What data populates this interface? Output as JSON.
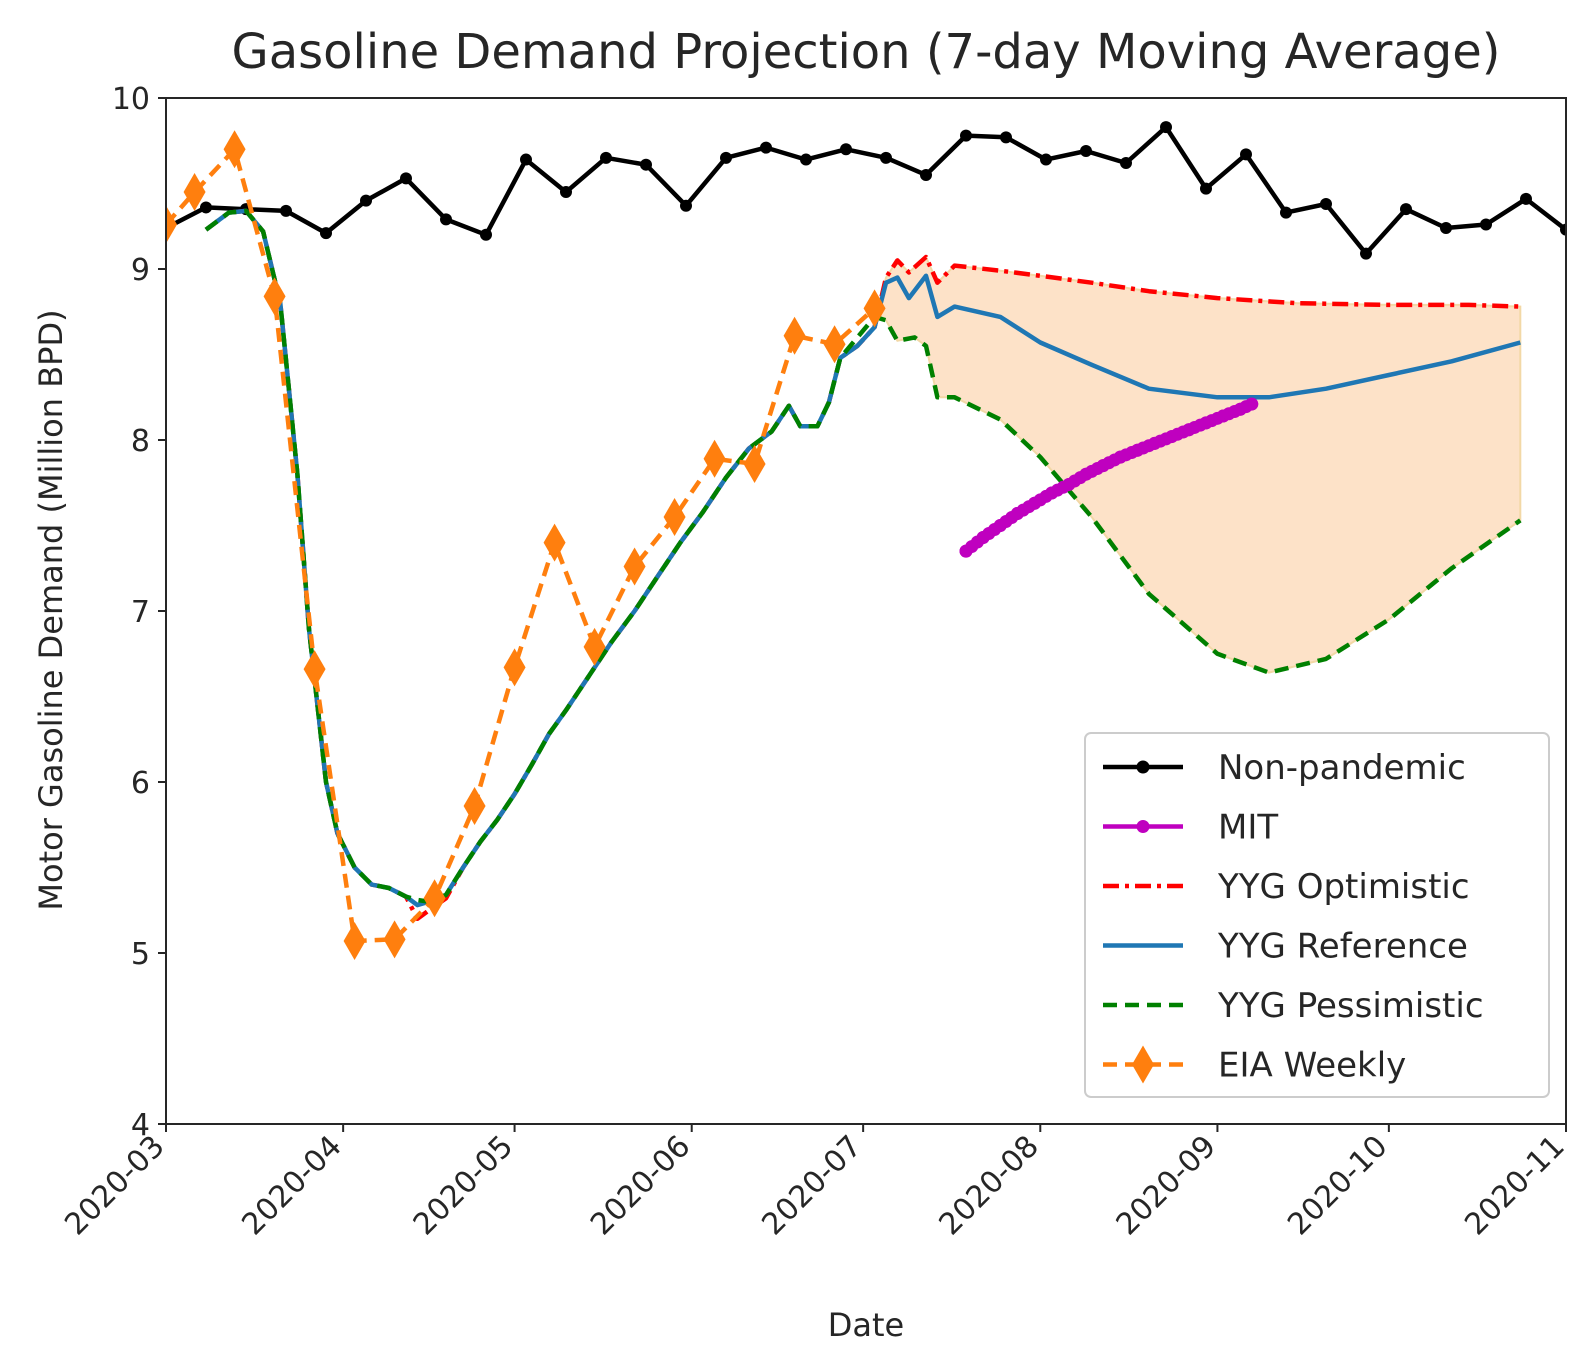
{
  "chart_data": {
    "type": "line",
    "title": "Gasoline Demand Projection (7-day Moving Average)",
    "xlabel": "Date",
    "ylabel": "Motor Gasoline Demand (Million BPD)",
    "xlim": [
      "2020-03-01",
      "2020-11-01"
    ],
    "ylim": [
      4,
      10
    ],
    "x_ticks": [
      "2020-03",
      "2020-04",
      "2020-05",
      "2020-06",
      "2020-07",
      "2020-08",
      "2020-09",
      "2020-10",
      "2020-11"
    ],
    "y_ticks": [
      "4",
      "5",
      "6",
      "7",
      "8",
      "9",
      "10"
    ],
    "grid": false,
    "legend_position": "lower-right",
    "series": [
      {
        "name": "Non-pandemic",
        "color": "#000000",
        "style": "solid-dot",
        "points": [
          [
            "2020-03-01",
            9.24
          ],
          [
            "2020-03-08",
            9.36
          ],
          [
            "2020-03-15",
            9.35
          ],
          [
            "2020-03-22",
            9.34
          ],
          [
            "2020-03-29",
            9.21
          ],
          [
            "2020-04-05",
            9.4
          ],
          [
            "2020-04-12",
            9.53
          ],
          [
            "2020-04-19",
            9.29
          ],
          [
            "2020-04-26",
            9.2
          ],
          [
            "2020-05-03",
            9.64
          ],
          [
            "2020-05-10",
            9.45
          ],
          [
            "2020-05-17",
            9.65
          ],
          [
            "2020-05-24",
            9.61
          ],
          [
            "2020-05-31",
            9.37
          ],
          [
            "2020-06-07",
            9.65
          ],
          [
            "2020-06-14",
            9.71
          ],
          [
            "2020-06-21",
            9.64
          ],
          [
            "2020-06-28",
            9.7
          ],
          [
            "2020-07-05",
            9.65
          ],
          [
            "2020-07-12",
            9.55
          ],
          [
            "2020-07-19",
            9.78
          ],
          [
            "2020-07-26",
            9.77
          ],
          [
            "2020-08-02",
            9.64
          ],
          [
            "2020-08-09",
            9.69
          ],
          [
            "2020-08-16",
            9.62
          ],
          [
            "2020-08-23",
            9.83
          ],
          [
            "2020-08-30",
            9.47
          ],
          [
            "2020-09-06",
            9.67
          ],
          [
            "2020-09-13",
            9.33
          ],
          [
            "2020-09-20",
            9.38
          ],
          [
            "2020-09-27",
            9.09
          ],
          [
            "2020-10-04",
            9.35
          ],
          [
            "2020-10-11",
            9.24
          ],
          [
            "2020-10-18",
            9.26
          ],
          [
            "2020-10-25",
            9.41
          ],
          [
            "2020-11-01",
            9.23
          ]
        ]
      },
      {
        "name": "MIT",
        "color": "#bf00bf",
        "style": "solid-dot",
        "points": [
          [
            "2020-07-19",
            7.35
          ],
          [
            "2020-07-22",
            7.43
          ],
          [
            "2020-07-25",
            7.5
          ],
          [
            "2020-07-28",
            7.57
          ],
          [
            "2020-07-31",
            7.63
          ],
          [
            "2020-08-03",
            7.69
          ],
          [
            "2020-08-06",
            7.74
          ],
          [
            "2020-08-09",
            7.8
          ],
          [
            "2020-08-12",
            7.85
          ],
          [
            "2020-08-15",
            7.9
          ],
          [
            "2020-08-18",
            7.94
          ],
          [
            "2020-08-21",
            7.98
          ],
          [
            "2020-08-24",
            8.02
          ],
          [
            "2020-08-27",
            8.06
          ],
          [
            "2020-08-30",
            8.1
          ],
          [
            "2020-09-02",
            8.14
          ],
          [
            "2020-09-05",
            8.18
          ],
          [
            "2020-09-07",
            8.21
          ]
        ]
      },
      {
        "name": "YYG Optimistic",
        "color": "#ff0000",
        "style": "dashdot",
        "points": [
          [
            "2020-03-08",
            9.23
          ],
          [
            "2020-03-12",
            9.33
          ],
          [
            "2020-03-15",
            9.34
          ],
          [
            "2020-03-18",
            9.22
          ],
          [
            "2020-03-21",
            8.8
          ],
          [
            "2020-03-24",
            7.8
          ],
          [
            "2020-03-26",
            6.9
          ],
          [
            "2020-03-29",
            6.0
          ],
          [
            "2020-03-31",
            5.7
          ],
          [
            "2020-04-03",
            5.5
          ],
          [
            "2020-04-06",
            5.4
          ],
          [
            "2020-04-09",
            5.38
          ],
          [
            "2020-04-12",
            5.33
          ],
          [
            "2020-04-14",
            5.2
          ],
          [
            "2020-04-16",
            5.25
          ],
          [
            "2020-04-19",
            5.32
          ],
          [
            "2020-04-22",
            5.5
          ],
          [
            "2020-04-25",
            5.65
          ],
          [
            "2020-04-28",
            5.78
          ],
          [
            "2020-05-01",
            5.93
          ],
          [
            "2020-05-04",
            6.1
          ],
          [
            "2020-05-07",
            6.28
          ],
          [
            "2020-05-10",
            6.42
          ],
          [
            "2020-05-14",
            6.62
          ],
          [
            "2020-05-18",
            6.82
          ],
          [
            "2020-05-22",
            7.0
          ],
          [
            "2020-05-26",
            7.2
          ],
          [
            "2020-05-30",
            7.4
          ],
          [
            "2020-06-03",
            7.58
          ],
          [
            "2020-06-07",
            7.78
          ],
          [
            "2020-06-11",
            7.95
          ],
          [
            "2020-06-15",
            8.05
          ],
          [
            "2020-06-18",
            8.2
          ],
          [
            "2020-06-20",
            8.08
          ],
          [
            "2020-06-23",
            8.08
          ],
          [
            "2020-06-25",
            8.22
          ],
          [
            "2020-06-27",
            8.48
          ],
          [
            "2020-06-30",
            8.55
          ],
          [
            "2020-07-03",
            8.66
          ],
          [
            "2020-07-05",
            8.95
          ],
          [
            "2020-07-07",
            9.05
          ],
          [
            "2020-07-09",
            8.98
          ],
          [
            "2020-07-12",
            9.07
          ],
          [
            "2020-07-14",
            8.92
          ],
          [
            "2020-07-17",
            9.02
          ],
          [
            "2020-07-25",
            8.99
          ],
          [
            "2020-08-01",
            8.96
          ],
          [
            "2020-08-10",
            8.92
          ],
          [
            "2020-08-20",
            8.87
          ],
          [
            "2020-09-01",
            8.83
          ],
          [
            "2020-09-15",
            8.8
          ],
          [
            "2020-10-01",
            8.79
          ],
          [
            "2020-10-15",
            8.79
          ],
          [
            "2020-10-24",
            8.78
          ]
        ]
      },
      {
        "name": "YYG Reference",
        "color": "#1f77b4",
        "style": "solid",
        "points": [
          [
            "2020-03-08",
            9.23
          ],
          [
            "2020-03-12",
            9.33
          ],
          [
            "2020-03-15",
            9.34
          ],
          [
            "2020-03-18",
            9.22
          ],
          [
            "2020-03-21",
            8.8
          ],
          [
            "2020-03-24",
            7.8
          ],
          [
            "2020-03-26",
            6.9
          ],
          [
            "2020-03-29",
            6.0
          ],
          [
            "2020-03-31",
            5.7
          ],
          [
            "2020-04-03",
            5.5
          ],
          [
            "2020-04-06",
            5.4
          ],
          [
            "2020-04-09",
            5.38
          ],
          [
            "2020-04-12",
            5.33
          ],
          [
            "2020-04-14",
            5.28
          ],
          [
            "2020-04-16",
            5.3
          ],
          [
            "2020-04-19",
            5.34
          ],
          [
            "2020-04-22",
            5.5
          ],
          [
            "2020-04-25",
            5.65
          ],
          [
            "2020-04-28",
            5.78
          ],
          [
            "2020-05-01",
            5.93
          ],
          [
            "2020-05-04",
            6.1
          ],
          [
            "2020-05-07",
            6.28
          ],
          [
            "2020-05-10",
            6.42
          ],
          [
            "2020-05-14",
            6.62
          ],
          [
            "2020-05-18",
            6.82
          ],
          [
            "2020-05-22",
            7.0
          ],
          [
            "2020-05-26",
            7.2
          ],
          [
            "2020-05-30",
            7.4
          ],
          [
            "2020-06-03",
            7.58
          ],
          [
            "2020-06-07",
            7.78
          ],
          [
            "2020-06-11",
            7.95
          ],
          [
            "2020-06-15",
            8.05
          ],
          [
            "2020-06-18",
            8.2
          ],
          [
            "2020-06-20",
            8.08
          ],
          [
            "2020-06-23",
            8.08
          ],
          [
            "2020-06-25",
            8.22
          ],
          [
            "2020-06-27",
            8.48
          ],
          [
            "2020-06-30",
            8.55
          ],
          [
            "2020-07-03",
            8.66
          ],
          [
            "2020-07-05",
            8.92
          ],
          [
            "2020-07-07",
            8.95
          ],
          [
            "2020-07-09",
            8.83
          ],
          [
            "2020-07-12",
            8.96
          ],
          [
            "2020-07-14",
            8.72
          ],
          [
            "2020-07-17",
            8.78
          ],
          [
            "2020-07-25",
            8.72
          ],
          [
            "2020-08-01",
            8.57
          ],
          [
            "2020-08-10",
            8.44
          ],
          [
            "2020-08-20",
            8.3
          ],
          [
            "2020-09-01",
            8.25
          ],
          [
            "2020-09-10",
            8.25
          ],
          [
            "2020-09-20",
            8.3
          ],
          [
            "2020-10-01",
            8.38
          ],
          [
            "2020-10-12",
            8.46
          ],
          [
            "2020-10-24",
            8.57
          ]
        ]
      },
      {
        "name": "YYG Pessimistic",
        "color": "#008000",
        "style": "dashed",
        "points": [
          [
            "2020-03-08",
            9.23
          ],
          [
            "2020-03-12",
            9.33
          ],
          [
            "2020-03-15",
            9.34
          ],
          [
            "2020-03-18",
            9.22
          ],
          [
            "2020-03-21",
            8.8
          ],
          [
            "2020-03-24",
            7.8
          ],
          [
            "2020-03-26",
            6.9
          ],
          [
            "2020-03-29",
            6.0
          ],
          [
            "2020-03-31",
            5.7
          ],
          [
            "2020-04-03",
            5.5
          ],
          [
            "2020-04-06",
            5.4
          ],
          [
            "2020-04-09",
            5.38
          ],
          [
            "2020-04-12",
            5.33
          ],
          [
            "2020-04-14",
            5.31
          ],
          [
            "2020-04-16",
            5.3
          ],
          [
            "2020-04-19",
            5.34
          ],
          [
            "2020-04-22",
            5.5
          ],
          [
            "2020-04-25",
            5.65
          ],
          [
            "2020-04-28",
            5.78
          ],
          [
            "2020-05-01",
            5.93
          ],
          [
            "2020-05-04",
            6.1
          ],
          [
            "2020-05-07",
            6.28
          ],
          [
            "2020-05-10",
            6.42
          ],
          [
            "2020-05-14",
            6.62
          ],
          [
            "2020-05-18",
            6.82
          ],
          [
            "2020-05-22",
            7.0
          ],
          [
            "2020-05-26",
            7.2
          ],
          [
            "2020-05-30",
            7.4
          ],
          [
            "2020-06-03",
            7.58
          ],
          [
            "2020-06-07",
            7.78
          ],
          [
            "2020-06-11",
            7.95
          ],
          [
            "2020-06-15",
            8.05
          ],
          [
            "2020-06-18",
            8.2
          ],
          [
            "2020-06-20",
            8.08
          ],
          [
            "2020-06-23",
            8.08
          ],
          [
            "2020-06-25",
            8.22
          ],
          [
            "2020-06-27",
            8.48
          ],
          [
            "2020-06-30",
            8.6
          ],
          [
            "2020-07-03",
            8.72
          ],
          [
            "2020-07-05",
            8.7
          ],
          [
            "2020-07-07",
            8.58
          ],
          [
            "2020-07-10",
            8.6
          ],
          [
            "2020-07-12",
            8.55
          ],
          [
            "2020-07-14",
            8.25
          ],
          [
            "2020-07-17",
            8.25
          ],
          [
            "2020-07-25",
            8.12
          ],
          [
            "2020-08-01",
            7.9
          ],
          [
            "2020-08-10",
            7.55
          ],
          [
            "2020-08-20",
            7.1
          ],
          [
            "2020-09-01",
            6.75
          ],
          [
            "2020-09-10",
            6.64
          ],
          [
            "2020-09-20",
            6.72
          ],
          [
            "2020-10-01",
            6.95
          ],
          [
            "2020-10-12",
            7.25
          ],
          [
            "2020-10-24",
            7.53
          ]
        ]
      },
      {
        "name": "EIA Weekly",
        "color": "#ff7f0e",
        "style": "dashed-diamond",
        "points": [
          [
            "2020-03-01",
            9.26
          ],
          [
            "2020-03-06",
            9.45
          ],
          [
            "2020-03-13",
            9.7
          ],
          [
            "2020-03-20",
            8.84
          ],
          [
            "2020-03-27",
            6.66
          ],
          [
            "2020-04-03",
            5.07
          ],
          [
            "2020-04-10",
            5.08
          ],
          [
            "2020-04-17",
            5.32
          ],
          [
            "2020-04-24",
            5.86
          ],
          [
            "2020-05-01",
            6.67
          ],
          [
            "2020-05-08",
            7.4
          ],
          [
            "2020-05-15",
            6.79
          ],
          [
            "2020-05-22",
            7.26
          ],
          [
            "2020-05-29",
            7.55
          ],
          [
            "2020-06-05",
            7.89
          ],
          [
            "2020-06-12",
            7.86
          ],
          [
            "2020-06-19",
            8.61
          ],
          [
            "2020-06-26",
            8.56
          ],
          [
            "2020-07-03",
            8.77
          ]
        ]
      }
    ],
    "band": {
      "color": "#fde2c8",
      "edge_color": "#f2d8a6",
      "between": [
        "YYG Optimistic",
        "YYG Pessimistic"
      ],
      "x_range": [
        "2020-07-03",
        "2020-10-24"
      ]
    }
  }
}
